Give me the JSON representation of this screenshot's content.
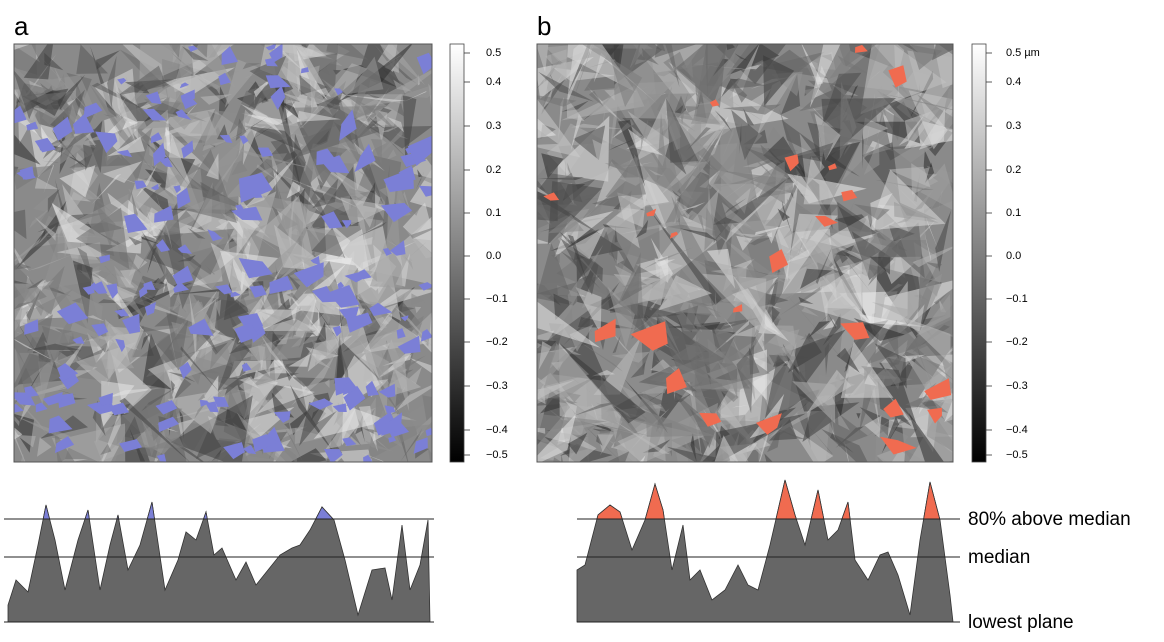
{
  "panels": [
    {
      "label": "a",
      "colorbar_ticks": [
        "0.5",
        "0.4",
        "0.3",
        "0.2",
        "0.1",
        "0.0",
        "−0.1",
        "−0.2",
        "−0.3",
        "−0.4",
        "−0.5"
      ]
    },
    {
      "label": "b",
      "colorbar_ticks": [
        "0.5 µm",
        "0.4",
        "0.3",
        "0.2",
        "0.1",
        "0.0",
        "−0.1",
        "−0.2",
        "−0.3",
        "−0.4",
        "−0.5"
      ]
    }
  ],
  "profile_labels": [
    "80% above median",
    "median",
    "lowest plane"
  ]
}
